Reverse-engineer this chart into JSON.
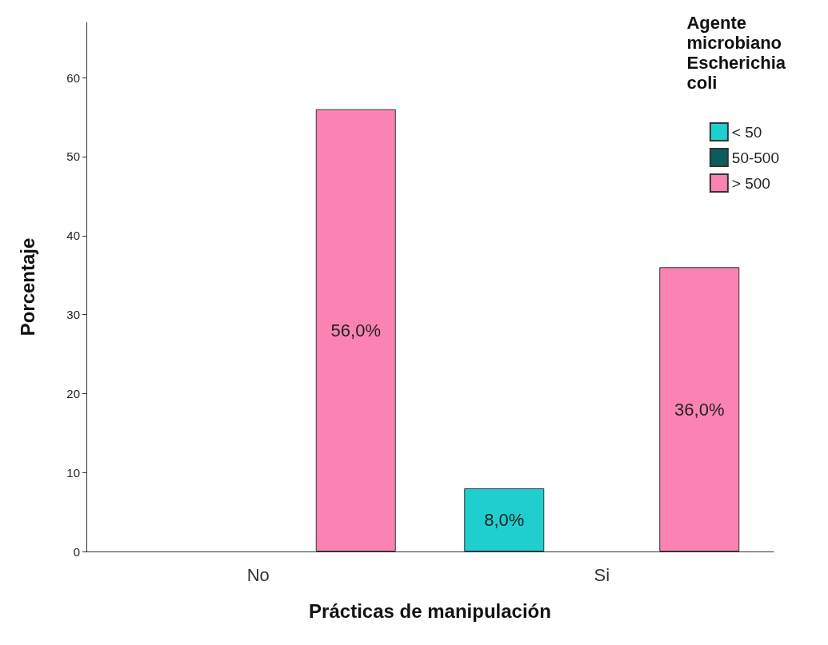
{
  "chart_data": {
    "type": "bar",
    "xlabel": "Prácticas de manipulación",
    "ylabel": "Porcentaje",
    "legend_title": "Agente\nmicrobiano\nEscherichia\ncoli",
    "categories": [
      "No",
      "Si"
    ],
    "series": [
      {
        "name": "< 50",
        "color": "#1fcfcf",
        "values": [
          null,
          8.0
        ],
        "value_labels": [
          null,
          "8,0%"
        ]
      },
      {
        "name": "50-500",
        "color": "#0d5c5c",
        "values": [
          null,
          null
        ],
        "value_labels": [
          null,
          null
        ]
      },
      {
        "name": "> 500",
        "color": "#fb83b3",
        "values": [
          56.0,
          36.0
        ],
        "value_labels": [
          "56,0%",
          "36,0%"
        ]
      }
    ],
    "ylim": [
      0,
      67
    ],
    "yticks": [
      0,
      10,
      20,
      30,
      40,
      50,
      60
    ],
    "grid": false,
    "legend": "top right"
  }
}
